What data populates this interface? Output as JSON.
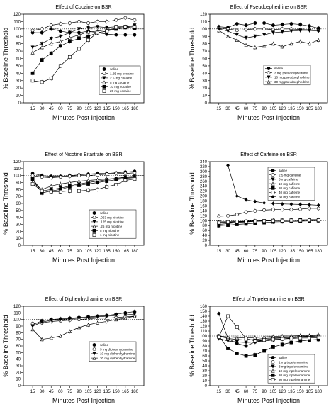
{
  "chart_data": [
    {
      "type": "line",
      "title": "Effect of Cocaine on BSR",
      "xlabel": "Minutes Post Injection",
      "ylabel": "% Baseline Threshold",
      "xlim": [
        0,
        195
      ],
      "ylim": [
        0,
        120
      ],
      "xticks": [
        15,
        30,
        45,
        60,
        75,
        90,
        105,
        120,
        135,
        150,
        165,
        180
      ],
      "yticks": [
        0,
        10,
        20,
        30,
        40,
        50,
        60,
        70,
        80,
        90,
        100,
        110,
        120
      ],
      "legend_position": "center-right",
      "x": [
        15,
        30,
        45,
        60,
        75,
        90,
        105,
        120,
        135,
        150,
        165,
        180
      ],
      "series": [
        {
          "name": "saline",
          "marker": "circle-filled",
          "values": [
            95,
            95,
            100,
            97,
            95,
            95,
            97,
            95,
            93,
            92,
            92,
            92
          ]
        },
        {
          "name": "1.25 mg cocaine",
          "marker": "circle-open",
          "values": [
            98,
            100,
            105,
            107,
            108,
            110,
            108,
            110,
            110,
            112,
            115,
            112
          ]
        },
        {
          "name": "2.5 mg cocaine",
          "marker": "triangle-down-filled",
          "values": [
            75,
            80,
            87,
            90,
            95,
            100,
            102,
            103,
            102,
            103,
            103,
            105
          ]
        },
        {
          "name": "5 mg cocaine",
          "marker": "triangle-up-open",
          "values": [
            68,
            75,
            80,
            83,
            88,
            92,
            96,
            97,
            99,
            100,
            102,
            103
          ]
        },
        {
          "name": "10 mg cocaine",
          "marker": "square-filled",
          "values": [
            40,
            58,
            67,
            77,
            83,
            87,
            90,
            95,
            97,
            100,
            102,
            101
          ]
        },
        {
          "name": "20 mg cocaine",
          "marker": "square-open",
          "values": [
            30,
            28,
            33,
            50,
            62,
            73,
            85,
            95,
            97,
            102,
            103,
            103
          ]
        }
      ]
    },
    {
      "type": "line",
      "title": "Effect of Pseudoephedrine on BSR",
      "xlabel": "Minutes Post Injection",
      "ylabel": "% Baseline Threshold",
      "xlim": [
        0,
        195
      ],
      "ylim": [
        0,
        120
      ],
      "xticks": [
        15,
        30,
        45,
        60,
        75,
        90,
        105,
        120,
        135,
        150,
        165,
        180
      ],
      "yticks": [
        0,
        10,
        20,
        30,
        40,
        50,
        60,
        70,
        80,
        90,
        100,
        110,
        120
      ],
      "legend_position": "center-right",
      "x": [
        15,
        30,
        45,
        60,
        75,
        90,
        105,
        120,
        135,
        150,
        165,
        180
      ],
      "series": [
        {
          "name": "saline",
          "marker": "circle-filled",
          "values": [
            103,
            102,
            107,
            105,
            108,
            108,
            105,
            106,
            107,
            106,
            104,
            101
          ]
        },
        {
          "name": "3 mg pseudoephedrine",
          "marker": "circle-open",
          "values": [
            101,
            100,
            98,
            99,
            100,
            100,
            99,
            100,
            100,
            99,
            99,
            98
          ]
        },
        {
          "name": "10 mg pseudoephedrine",
          "marker": "triangle-down-filled",
          "values": [
            100,
            97,
            92,
            88,
            90,
            92,
            95,
            96,
            97,
            98,
            98,
            97
          ]
        },
        {
          "name": "30 mg pseudoephedrine",
          "marker": "triangle-up-open",
          "values": [
            98,
            90,
            85,
            78,
            75,
            77,
            80,
            76,
            80,
            83,
            80,
            85
          ]
        }
      ]
    },
    {
      "type": "line",
      "title": "Effect of Nicotine Bitartrate on BSR",
      "xlabel": "Minutes Post Injection",
      "ylabel": "% Baseline Threshold",
      "xlim": [
        0,
        195
      ],
      "ylim": [
        0,
        120
      ],
      "xticks": [
        15,
        30,
        45,
        60,
        75,
        90,
        105,
        120,
        135,
        150,
        165,
        180
      ],
      "yticks": [
        0,
        10,
        20,
        30,
        40,
        50,
        60,
        70,
        80,
        90,
        100,
        110,
        120
      ],
      "legend_position": "bottom-right",
      "x": [
        15,
        30,
        45,
        60,
        75,
        90,
        105,
        120,
        135,
        150,
        165,
        180
      ],
      "series": [
        {
          "name": "saline",
          "marker": "circle-filled",
          "values": [
            103,
            100,
            99,
            99,
            100,
            101,
            102,
            103,
            103,
            104,
            105,
            106
          ]
        },
        {
          "name": ".063 mg nicotine",
          "marker": "circle-open",
          "values": [
            100,
            98,
            97,
            98,
            99,
            100,
            100,
            101,
            102,
            103,
            103,
            104
          ]
        },
        {
          "name": ".125 mg nicotine",
          "marker": "triangle-down-filled",
          "values": [
            95,
            78,
            80,
            82,
            85,
            88,
            90,
            92,
            94,
            96,
            98,
            99
          ]
        },
        {
          "name": ".25 mg nicotine",
          "marker": "triangle-up-open",
          "values": [
            90,
            80,
            85,
            88,
            90,
            92,
            93,
            94,
            95,
            96,
            97,
            98
          ]
        },
        {
          "name": "5 mg nicotine",
          "marker": "square-filled",
          "values": [
            95,
            75,
            78,
            80,
            84,
            86,
            88,
            90,
            92,
            94,
            96,
            97
          ]
        },
        {
          "name": "1 mg nicotine",
          "marker": "square-open",
          "values": [
            88,
            78,
            77,
            77,
            78,
            78,
            79,
            80,
            84,
            87,
            93,
            95
          ]
        }
      ]
    },
    {
      "type": "line",
      "title": "Effect of Caffeine on BSR",
      "xlabel": "Minutes Post Injection",
      "ylabel": "% Baseline Threshold",
      "xlim": [
        0,
        195
      ],
      "ylim": [
        0,
        340
      ],
      "xticks": [
        15,
        30,
        45,
        60,
        75,
        90,
        105,
        120,
        135,
        150,
        165,
        180
      ],
      "yticks": [
        0,
        20,
        40,
        60,
        80,
        100,
        120,
        140,
        160,
        180,
        200,
        220,
        240,
        260,
        280,
        300,
        320,
        340
      ],
      "legend_position": "top-right",
      "x": [
        15,
        30,
        45,
        60,
        75,
        90,
        105,
        120,
        135,
        150,
        165,
        180
      ],
      "series": [
        {
          "name": "saline",
          "marker": "circle-filled",
          "values": [
            90,
            92,
            95,
            96,
            98,
            99,
            100,
            101,
            102,
            102,
            103,
            103
          ]
        },
        {
          "name": "2.5 mg caffeine",
          "marker": "circle-open",
          "values": [
            118,
            120,
            125,
            135,
            140,
            143,
            145,
            145,
            145,
            147,
            150,
            150
          ]
        },
        {
          "name": "5 mg caffeine",
          "marker": "triangle-down-filled",
          "values": [
            85,
            88,
            92,
            95,
            97,
            99,
            100,
            101,
            102,
            103,
            104,
            104
          ]
        },
        {
          "name": "10 mg caffeine",
          "marker": "triangle-up-open",
          "values": [
            95,
            96,
            97,
            98,
            99,
            100,
            100,
            101,
            101,
            102,
            102,
            103
          ]
        },
        {
          "name": "20 mg caffeine",
          "marker": "square-filled",
          "values": [
            80,
            82,
            85,
            87,
            90,
            92,
            95,
            96,
            97,
            98,
            99,
            100
          ]
        },
        {
          "name": "40 mg caffeine",
          "marker": "square-open",
          "values": [
            92,
            94,
            96,
            97,
            98,
            99,
            100,
            100,
            101,
            101,
            102,
            102
          ]
        },
        {
          "name": "60 mg caffeine",
          "marker": "diamond-filled",
          "values": [
            null,
            325,
            200,
            185,
            178,
            172,
            170,
            168,
            167,
            166,
            165,
            163
          ]
        }
      ]
    },
    {
      "type": "line",
      "title": "Effect of Diphenhydramine on BSR",
      "xlabel": "Minutes Post Injection",
      "ylabel": "% Baseline Threshold",
      "xlim": [
        0,
        195
      ],
      "ylim": [
        0,
        120
      ],
      "xticks": [
        15,
        30,
        45,
        60,
        75,
        90,
        105,
        120,
        135,
        150,
        165,
        180
      ],
      "yticks": [
        0,
        10,
        20,
        30,
        40,
        50,
        60,
        70,
        80,
        90,
        100,
        110,
        120
      ],
      "legend_position": "bottom-right",
      "x": [
        15,
        30,
        45,
        60,
        75,
        90,
        105,
        120,
        135,
        150,
        165,
        180
      ],
      "series": [
        {
          "name": "saline",
          "marker": "circle-filled",
          "values": [
            92,
            98,
            100,
            101,
            102,
            103,
            104,
            105,
            106,
            108,
            110,
            112
          ]
        },
        {
          "name": "3 mg diphenhydramine",
          "marker": "circle-open",
          "values": [
            94,
            95,
            97,
            98,
            99,
            100,
            101,
            102,
            102,
            103,
            104,
            105
          ]
        },
        {
          "name": "10 mg diphenhydramine",
          "marker": "triangle-down-filled",
          "values": [
            90,
            96,
            99,
            100,
            101,
            102,
            103,
            104,
            105,
            106,
            107,
            108
          ]
        },
        {
          "name": "30 mg diphenhydramine",
          "marker": "triangle-up-open",
          "values": [
            85,
            70,
            72,
            75,
            82,
            88,
            92,
            95,
            97,
            100,
            102,
            105
          ]
        }
      ]
    },
    {
      "type": "line",
      "title": "Effect of Tripelennamine on BSR",
      "xlabel": "Minutes Post Injection",
      "ylabel": "% Baseline Threshold",
      "xlim": [
        0,
        195
      ],
      "ylim": [
        0,
        160
      ],
      "xticks": [
        15,
        30,
        45,
        60,
        75,
        90,
        105,
        120,
        135,
        150,
        165,
        180
      ],
      "yticks": [
        0,
        10,
        20,
        30,
        40,
        50,
        60,
        70,
        80,
        90,
        100,
        110,
        120,
        130,
        140,
        150,
        160
      ],
      "legend_position": "bottom-right",
      "x": [
        15,
        30,
        45,
        60,
        75,
        90,
        105,
        120,
        135,
        150,
        165,
        180
      ],
      "series": [
        {
          "name": "saline",
          "marker": "circle-filled",
          "values": [
            145,
            95,
            85,
            80,
            88,
            92,
            95,
            96,
            97,
            98,
            99,
            100
          ]
        },
        {
          "name": "1 mg tripelennamine",
          "marker": "circle-open",
          "values": [
            100,
            95,
            93,
            92,
            93,
            95,
            96,
            97,
            98,
            99,
            100,
            100
          ]
        },
        {
          "name": "3 mg tripelennamine",
          "marker": "triangle-down-filled",
          "values": [
            95,
            90,
            88,
            87,
            88,
            90,
            92,
            94,
            96,
            98,
            99,
            100
          ]
        },
        {
          "name": "10 mg tripelennamine",
          "marker": "triangle-up-open",
          "values": [
            100,
            98,
            97,
            96,
            97,
            98,
            99,
            100,
            100,
            101,
            101,
            102
          ]
        },
        {
          "name": "20 mg tripelennamine",
          "marker": "square-filled",
          "values": [
            100,
            75,
            65,
            60,
            62,
            70,
            78,
            83,
            87,
            90,
            92,
            93
          ]
        },
        {
          "name": "30 mg tripelennamine",
          "marker": "square-open",
          "values": [
            98,
            140,
            118,
            95,
            90,
            92,
            93,
            94,
            95,
            96,
            96,
            97
          ]
        }
      ]
    }
  ]
}
